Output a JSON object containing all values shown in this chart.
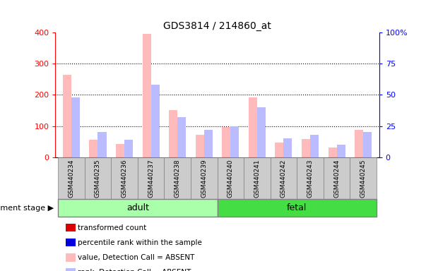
{
  "title": "GDS3814 / 214860_at",
  "samples": [
    "GSM440234",
    "GSM440235",
    "GSM440236",
    "GSM440237",
    "GSM440238",
    "GSM440239",
    "GSM440240",
    "GSM440241",
    "GSM440242",
    "GSM440243",
    "GSM440244",
    "GSM440245"
  ],
  "adult_count": 6,
  "fetal_count": 6,
  "value_absent": [
    265,
    55,
    42,
    395,
    152,
    72,
    97,
    192,
    48,
    58,
    32,
    87
  ],
  "rank_absent": [
    48,
    20,
    14,
    58,
    32,
    22,
    25,
    40,
    15,
    18,
    10,
    20
  ],
  "ylim_left": [
    0,
    400
  ],
  "ylim_right": [
    0,
    100
  ],
  "yticks_left": [
    0,
    100,
    200,
    300,
    400
  ],
  "yticks_right": [
    0,
    25,
    50,
    75,
    100
  ],
  "ytick_labels_right": [
    "0",
    "25",
    "50",
    "75",
    "100%"
  ],
  "adult_color": "#aaffaa",
  "fetal_color": "#44dd44",
  "bar_color_absent_value": "#ffbbbb",
  "bar_color_absent_rank": "#bbbbff",
  "bar_color_present_value": "#dd0000",
  "bar_color_present_rank": "#0000dd",
  "sample_box_color": "#cccccc",
  "legend_items": [
    {
      "label": "transformed count",
      "color": "#dd0000"
    },
    {
      "label": "percentile rank within the sample",
      "color": "#0000dd"
    },
    {
      "label": "value, Detection Call = ABSENT",
      "color": "#ffbbbb"
    },
    {
      "label": "rank, Detection Call = ABSENT",
      "color": "#bbbbff"
    }
  ],
  "dev_stage_label": "development stage",
  "adult_label": "adult",
  "fetal_label": "fetal",
  "bar_width": 0.32
}
